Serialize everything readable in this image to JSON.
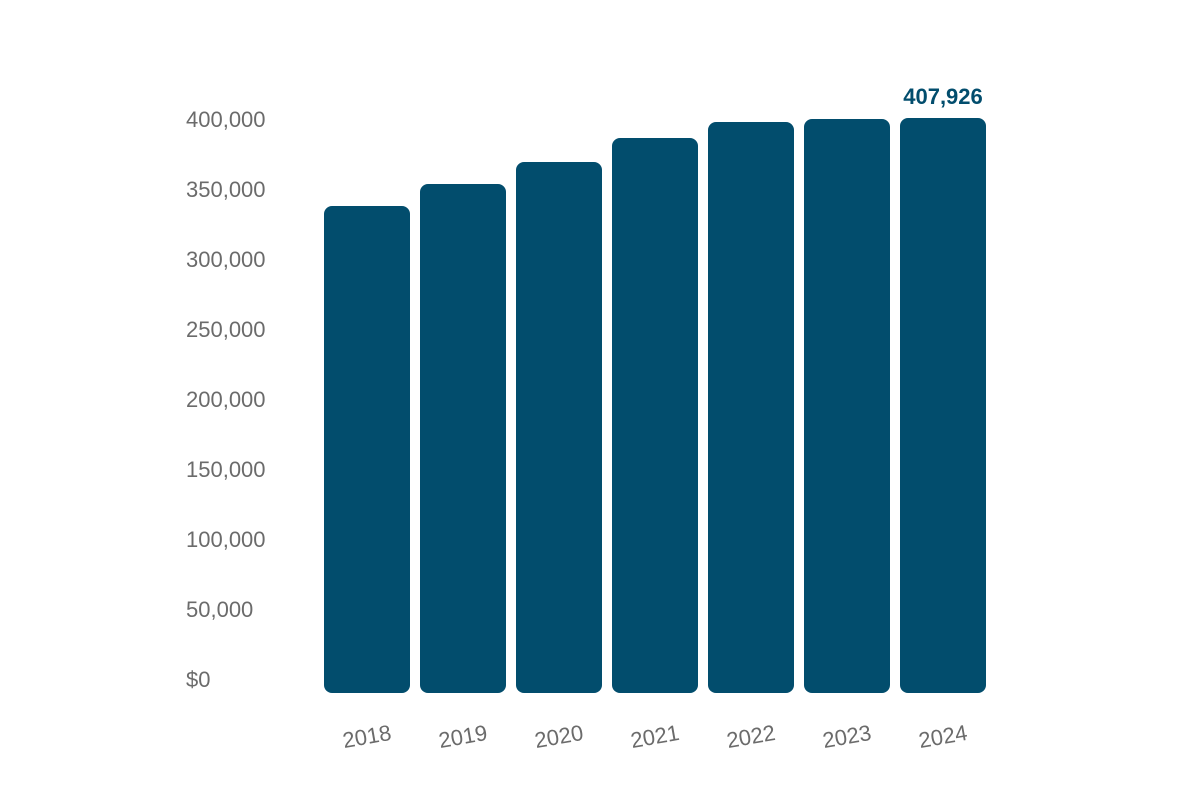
{
  "chart_data": {
    "type": "bar",
    "title": "",
    "xlabel": "",
    "ylabel": "",
    "categories": [
      "2018",
      "2019",
      "2020",
      "2021",
      "2022",
      "2023",
      "2024"
    ],
    "values": [
      345500,
      361000,
      376700,
      393700,
      405100,
      407300,
      407926
    ],
    "ylim": [
      0,
      400000
    ],
    "yticks": [
      "$0",
      "50,000",
      "100,000",
      "150,000",
      "200,000",
      "250,000",
      "300,000",
      "350,000",
      "400,000"
    ],
    "annotations": [
      {
        "category": "2024",
        "text": "407,926"
      }
    ],
    "bar_color": "#024d6d",
    "grid": false,
    "legend": null
  }
}
